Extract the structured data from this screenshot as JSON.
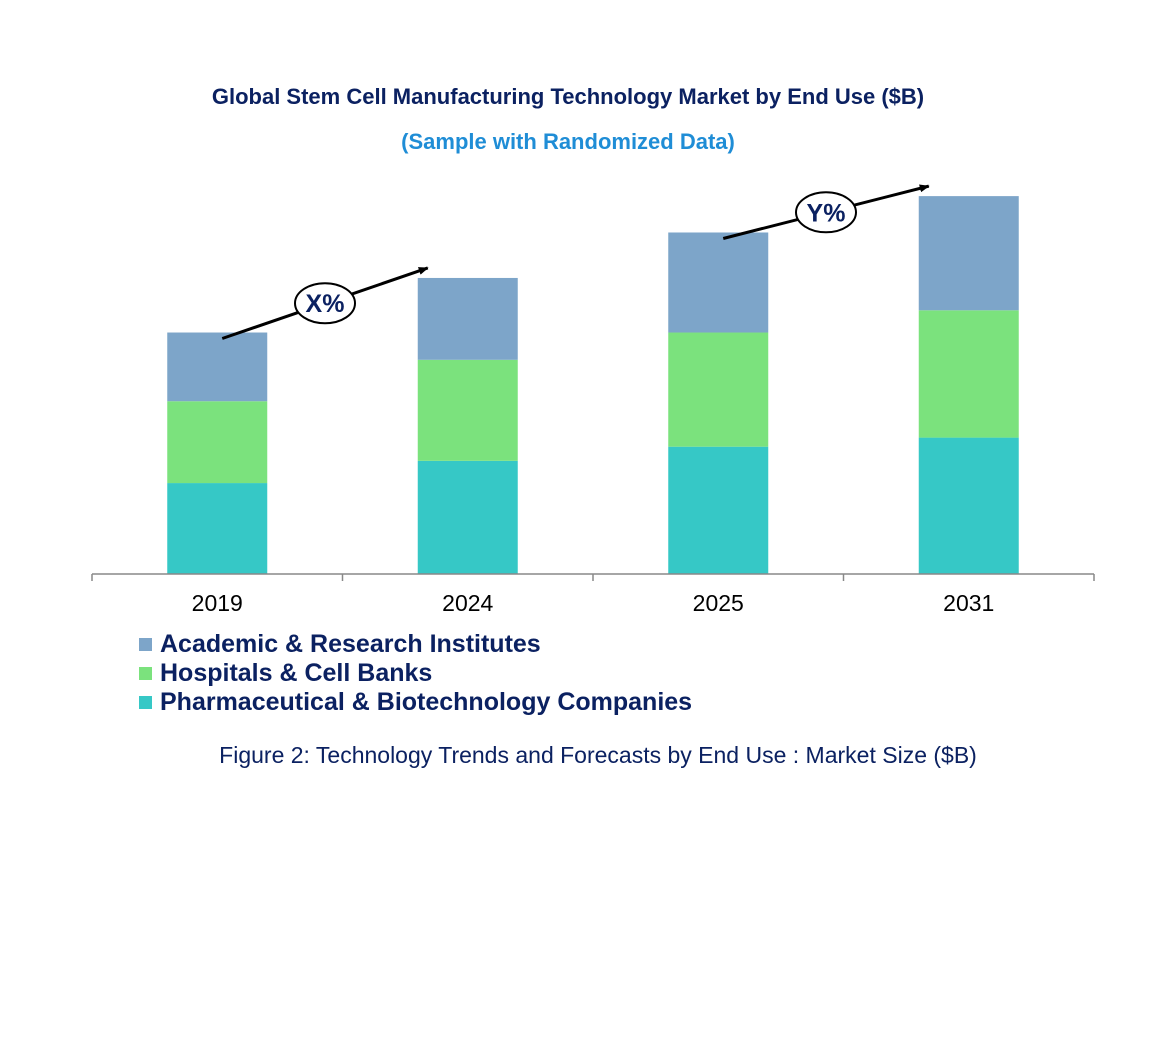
{
  "chart_data": {
    "type": "bar",
    "stacked": true,
    "title": "Global Stem Cell Manufacturing Technology Market by End Use ($B)",
    "subtitle": "(Sample with Randomized Data)",
    "categories": [
      "2019",
      "2024",
      "2025",
      "2031"
    ],
    "series": [
      {
        "name": "Pharmaceutical & Biotechnology Companies",
        "color": "#36c8c6",
        "values": [
          90,
          112,
          126,
          135
        ]
      },
      {
        "name": "Hospitals & Cell Banks",
        "color": "#7be27d",
        "values": [
          81,
          100,
          113,
          126
        ]
      },
      {
        "name": "Academic & Research Institutes",
        "color": "#7da5c9",
        "values": [
          68,
          81,
          99,
          113
        ]
      }
    ],
    "legend_order": [
      2,
      1,
      0
    ],
    "ylim": [
      0,
      385
    ],
    "annotations": [
      {
        "label": "X%",
        "from_category": "2019",
        "to_category": "2024"
      },
      {
        "label": "Y%",
        "from_category": "2025",
        "to_category": "2031"
      }
    ],
    "caption": "Figure 2: Technology Trends and Forecasts by End Use : Market Size ($B)"
  }
}
